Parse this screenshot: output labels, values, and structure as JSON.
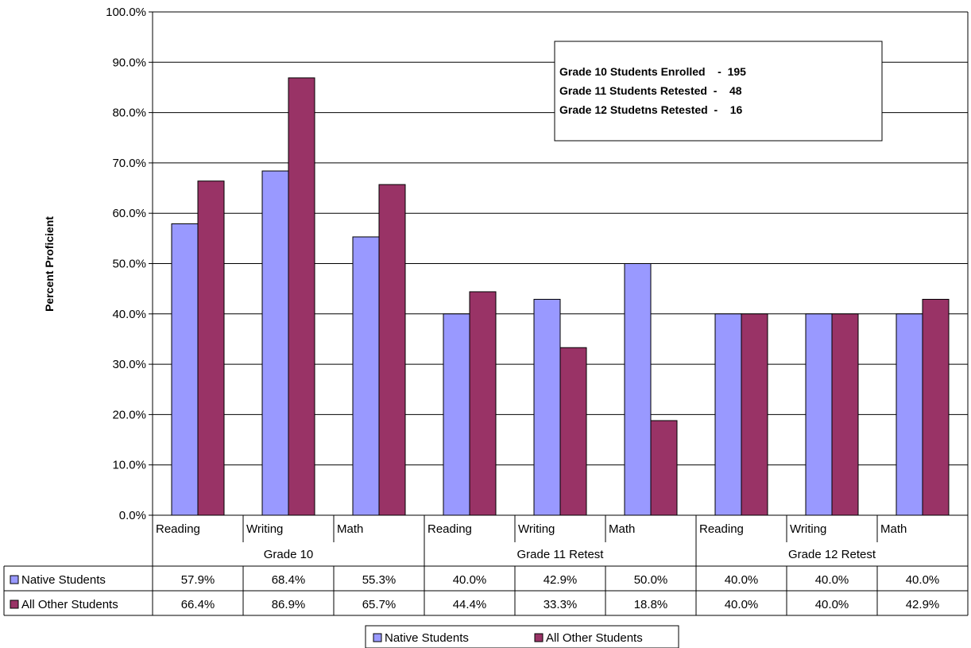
{
  "chart_data": {
    "type": "bar",
    "ylabel": "Percent Proficient",
    "ylim": [
      0,
      100
    ],
    "yticks": [
      "0.0%",
      "10.0%",
      "20.0%",
      "30.0%",
      "40.0%",
      "50.0%",
      "60.0%",
      "70.0%",
      "80.0%",
      "90.0%",
      "100.0%"
    ],
    "groups": [
      "Grade 10",
      "Grade 11 Retest",
      "Grade 12 Retest"
    ],
    "categories": [
      "Reading",
      "Writing",
      "Math",
      "Reading",
      "Writing",
      "Math",
      "Reading",
      "Writing",
      "Math"
    ],
    "series": [
      {
        "name": "Native Students",
        "color": "#9999ff",
        "values": [
          57.9,
          68.4,
          55.3,
          40.0,
          42.9,
          50.0,
          40.0,
          40.0,
          40.0
        ],
        "labels": [
          "57.9%",
          "68.4%",
          "55.3%",
          "40.0%",
          "42.9%",
          "50.0%",
          "40.0%",
          "40.0%",
          "40.0%"
        ]
      },
      {
        "name": "All Other Students",
        "color": "#993366",
        "values": [
          66.4,
          86.9,
          65.7,
          44.4,
          33.3,
          18.8,
          40.0,
          40.0,
          42.9
        ],
        "labels": [
          "66.4%",
          "86.9%",
          "65.7%",
          "44.4%",
          "33.3%",
          "18.8%",
          "40.0%",
          "40.0%",
          "42.9%"
        ]
      }
    ],
    "annotation": {
      "lines": [
        "Grade 10 Students Enrolled    -  195",
        "Grade 11 Students Retested  -    48",
        "Grade 12 Studetns Retested  -    16"
      ]
    },
    "legend": {
      "position": "bottom"
    },
    "grid": true
  }
}
